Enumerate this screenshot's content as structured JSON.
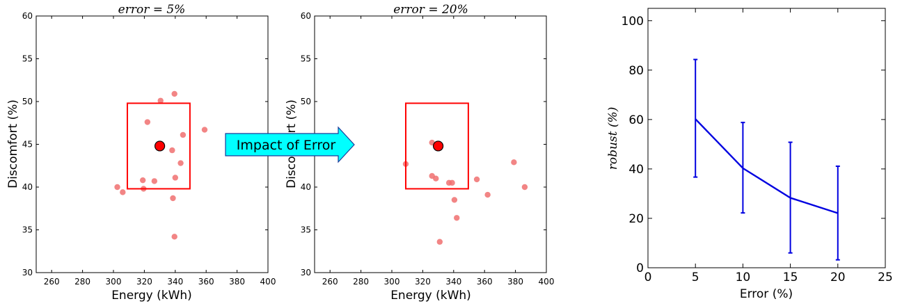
{
  "chart_data": [
    {
      "type": "scatter",
      "title": "error = 5%",
      "xlabel": "Energy (kWh)",
      "ylabel": "Discomfort (%)",
      "xlim": [
        250,
        400
      ],
      "ylim": [
        30,
        60
      ],
      "xticks": [
        "260",
        "280",
        "300",
        "320",
        "340",
        "360",
        "380",
        "400"
      ],
      "yticks": [
        "30",
        "35",
        "40",
        "45",
        "50",
        "55",
        "60"
      ],
      "points": [
        [
          339.5,
          50.9
        ],
        [
          330.5,
          50.1
        ],
        [
          322,
          47.6
        ],
        [
          345,
          46.1
        ],
        [
          359,
          46.7
        ],
        [
          338,
          44.3
        ],
        [
          343.5,
          42.8
        ],
        [
          340,
          41.1
        ],
        [
          319,
          40.8
        ],
        [
          326.5,
          40.7
        ],
        [
          302.5,
          40.0
        ],
        [
          306,
          39.4
        ],
        [
          319.5,
          39.8
        ],
        [
          338.5,
          38.7
        ],
        [
          339.5,
          34.2
        ]
      ],
      "target": {
        "x": 330,
        "y": 44.8
      },
      "region": {
        "x": [
          309,
          349.5
        ],
        "y": [
          39.8,
          49.8
        ]
      },
      "point_color": "#f07070",
      "target_color": "#ff0000"
    },
    {
      "type": "scatter",
      "title": "error = 20%",
      "xlabel": "Energy (kWh)",
      "ylabel": "Discomfort (%)",
      "xlim": [
        250,
        400
      ],
      "ylim": [
        30,
        60
      ],
      "xticks": [
        "260",
        "280",
        "300",
        "320",
        "340",
        "360",
        "380",
        "400"
      ],
      "yticks": [
        "30",
        "35",
        "40",
        "45",
        "50",
        "55",
        "60"
      ],
      "points": [
        [
          326,
          45.2
        ],
        [
          309,
          42.7
        ],
        [
          326,
          41.3
        ],
        [
          328.5,
          41.0
        ],
        [
          337,
          40.5
        ],
        [
          339,
          40.5
        ],
        [
          355,
          40.9
        ],
        [
          362,
          39.1
        ],
        [
          379,
          42.9
        ],
        [
          386,
          40.0
        ],
        [
          340.5,
          38.5
        ],
        [
          342,
          36.4
        ],
        [
          331,
          33.6
        ]
      ],
      "target": {
        "x": 330,
        "y": 44.8
      },
      "region": {
        "x": [
          309,
          349.5
        ],
        "y": [
          39.8,
          49.8
        ]
      },
      "point_color": "#f07070",
      "target_color": "#ff0000"
    },
    {
      "type": "line",
      "title": "",
      "xlabel": "Error (%)",
      "ylabel": "robust (%)",
      "xlim": [
        0,
        25
      ],
      "ylim": [
        0,
        105
      ],
      "xticks": [
        "0",
        "5",
        "10",
        "15",
        "20",
        "25"
      ],
      "yticks": [
        "0",
        "20",
        "40",
        "60",
        "80",
        "100"
      ],
      "x": [
        5,
        10,
        15,
        20
      ],
      "y": [
        60.2,
        40.3,
        28.3,
        22.1
      ],
      "err_low": [
        36.7,
        22.2,
        6.0,
        3.2
      ],
      "err_high": [
        84.3,
        58.8,
        50.8,
        41.1
      ],
      "color": "#0000e0"
    }
  ],
  "annotation": {
    "label": "Impact of Error",
    "color": "#00ffff"
  }
}
